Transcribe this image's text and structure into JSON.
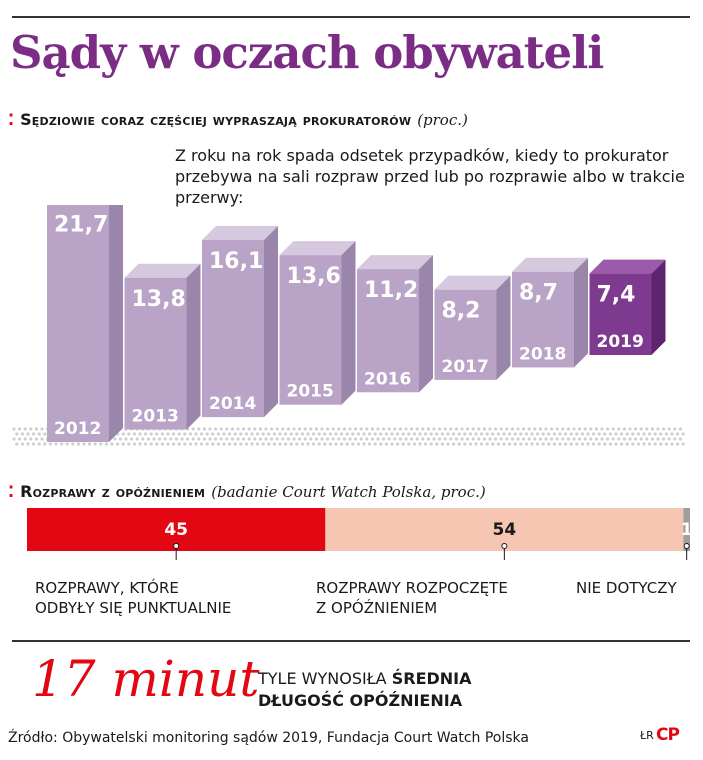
{
  "title": "Sądy w oczach obywateli",
  "section1": {
    "heading": "Sędziowie coraz częściej wypraszają prokuratorów",
    "unit": "(proc.)",
    "intro": "Z roku na rok spada odsetek przypadków, kiedy to prokurator przebywa na sali rozpraw przed lub po rozprawie albo w trakcie przerwy:"
  },
  "section2": {
    "heading": "Rozprawy z opóźnieniem",
    "note": "(badanie Court Watch Polska, proc.)",
    "labels": {
      "punctual_line1": "Rozprawy, które",
      "punctual_line2": "odbyły się punktualnie",
      "delayed_line1": "Rozprawy rozpoczęte",
      "delayed_line2": "z opóźnieniem",
      "na": "Nie dotyczy"
    }
  },
  "highlight": {
    "value": "17 minut",
    "text_plain": "Tyle wynosiła ",
    "text_bold1": "średnia",
    "text_bold2": "długość opóźnienia"
  },
  "source": "Źródło: Obywatelski monitoring sądów 2019, Fundacja Court Watch Polska",
  "credit": "ŁR",
  "logo": "CP",
  "colors": {
    "title": "#7b2d86",
    "bar": "#b9a3c7",
    "bar_highlight": "#7e3a8e",
    "accent_red": "#e30613",
    "peach": "#f6c6b3",
    "gray": "#9e9e9e"
  },
  "chart_data": [
    {
      "type": "bar",
      "categories": [
        "2012",
        "2013",
        "2014",
        "2015",
        "2016",
        "2017",
        "2018",
        "2019"
      ],
      "values": [
        21.7,
        13.8,
        16.1,
        13.6,
        11.2,
        8.2,
        8.7,
        7.4
      ],
      "value_labels": [
        "21,7",
        "13,8",
        "16,1",
        "13,6",
        "11,2",
        "8,2",
        "8,7",
        "7,4"
      ],
      "highlight_category": "2019"
    },
    {
      "type": "bar",
      "stacked": true,
      "orientation": "horizontal",
      "series": [
        {
          "name": "Rozprawy, które odbyły się punktualnie",
          "values": [
            45
          ],
          "label": "45"
        },
        {
          "name": "Rozprawy rozpoczęte z opóźnieniem",
          "values": [
            54
          ],
          "label": "54"
        },
        {
          "name": "Nie dotyczy",
          "values": [
            1
          ],
          "label": "1"
        }
      ]
    }
  ]
}
